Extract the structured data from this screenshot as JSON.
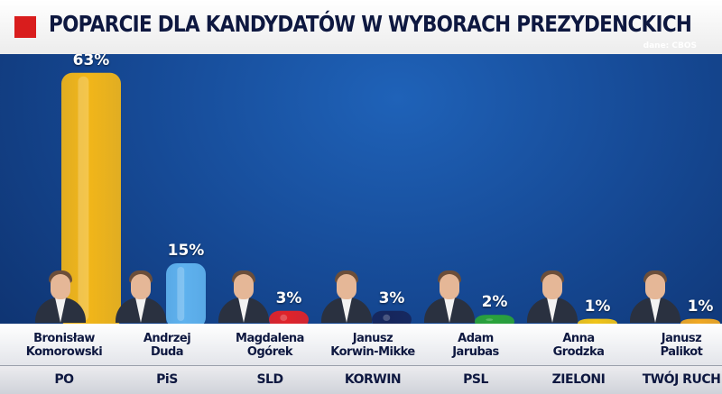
{
  "title": "POPARCIE DLA KANDYDATÓW W WYBORACH PREZYDENCKICH",
  "source": "dane: CBOS",
  "chart_data": {
    "type": "bar",
    "title": "POPARCIE DLA KANDYDATÓW W WYBORACH PREZYDENCKICH",
    "categories": [
      "Bronisław Komorowski",
      "Andrzej Duda",
      "Magdalena Ogórek",
      "Janusz Korwin-Mikke",
      "Adam Jarubas",
      "Anna Grodzka",
      "Janusz Palikot"
    ],
    "values": [
      63,
      15,
      3,
      3,
      2,
      1,
      1
    ],
    "value_labels": [
      "63%",
      "15%",
      "3%",
      "3%",
      "2%",
      "1%",
      "1%"
    ],
    "ylim": [
      0,
      65
    ],
    "grid": false,
    "legend": "none"
  },
  "candidates": [
    {
      "name_line1": "Bronisław",
      "name_line2": "Komorowski",
      "party": "PO",
      "color": "#f2b619",
      "photo": "candidate-photo-komorowski"
    },
    {
      "name_line1": "Andrzej",
      "name_line2": "Duda",
      "party": "PiS",
      "color": "#5fb2ee",
      "photo": "candidate-photo-duda"
    },
    {
      "name_line1": "Magdalena",
      "name_line2": "Ogórek",
      "party": "SLD",
      "color": "#e0232a",
      "photo": "candidate-photo-ogorek"
    },
    {
      "name_line1": "Janusz",
      "name_line2": "Korwin-Mikke",
      "party": "KORWIN",
      "color": "#16265c",
      "photo": "candidate-photo-korwin-mikke"
    },
    {
      "name_line1": "Adam",
      "name_line2": "Jarubas",
      "party": "PSL",
      "color": "#2aa33a",
      "photo": "candidate-photo-jarubas"
    },
    {
      "name_line1": "Anna",
      "name_line2": "Grodzka",
      "party": "ZIELONI",
      "color": "#f0c419",
      "photo": "candidate-photo-grodzka"
    },
    {
      "name_line1": "Janusz",
      "name_line2": "Palikot",
      "party": "TWÓJ RUCH",
      "color": "#f0a823",
      "photo": "candidate-photo-palikot"
    }
  ]
}
